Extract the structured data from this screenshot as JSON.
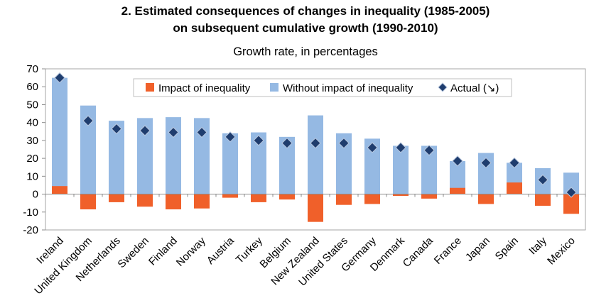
{
  "title_line1": "2. Estimated consequences of changes in inequality (1985-2005)",
  "title_line2": "on subsequent cumulative growth (1990-2010)",
  "subtitle": "Growth rate, in percentages",
  "chart_data": {
    "type": "bar",
    "categories": [
      "Ireland",
      "United Kingdom",
      "Netherlands",
      "Sweden",
      "Finland",
      "Norway",
      "Austria",
      "Turkey",
      "Belgium",
      "New Zealand",
      "United States",
      "Germany",
      "Denmark",
      "Canada",
      "France",
      "Japan",
      "Spain",
      "Italy",
      "Mexico"
    ],
    "series": [
      {
        "name": "Impact of inequality",
        "type": "bar",
        "color": "#f0602a",
        "values": [
          4.5,
          -8.5,
          -4.5,
          -7,
          -8.5,
          -8,
          -2,
          -4.5,
          -3,
          -15.5,
          -6,
          -5.5,
          -1,
          -2.5,
          3.5,
          -5.5,
          6.5,
          -6.5,
          -11
        ]
      },
      {
        "name": "Without impact of inequality",
        "type": "bar",
        "color": "#95b9e3",
        "values": [
          65,
          49.5,
          41,
          42.5,
          43,
          42.5,
          34,
          34.5,
          32,
          44,
          34,
          31,
          27,
          27,
          18.5,
          23,
          17.5,
          14.5,
          12
        ]
      },
      {
        "name": "Actual (↘)",
        "type": "marker",
        "color": "#1f3d6e",
        "values": [
          65,
          41,
          36.5,
          35.5,
          34.5,
          34.5,
          32,
          30,
          28.5,
          28.5,
          28.5,
          26,
          26,
          24.5,
          18.5,
          17.5,
          17.5,
          8,
          1
        ]
      }
    ],
    "yaxis": {
      "min": -20,
      "max": 70,
      "step": 10
    },
    "grid": false,
    "legend_position": "top-right"
  }
}
